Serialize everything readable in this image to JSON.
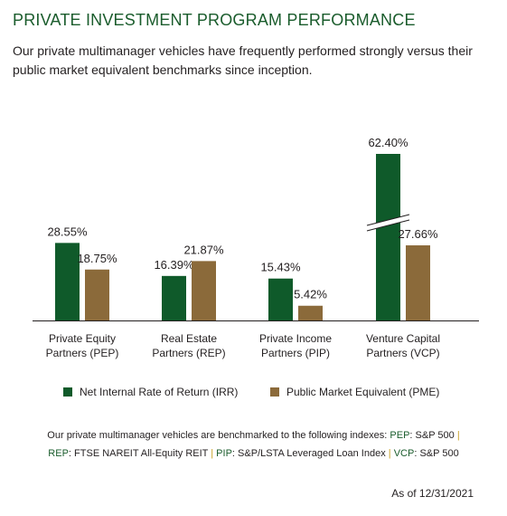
{
  "header": {
    "title": "PRIVATE INVESTMENT PROGRAM PERFORMANCE",
    "subtitle": "Our private multimanager vehicles have frequently performed strongly versus their public market equivalent benchmarks since inception."
  },
  "chart_data": {
    "type": "bar",
    "categories": [
      [
        "Private Equity",
        "Partners (PEP)"
      ],
      [
        "Real Estate",
        "Partners (REP)"
      ],
      [
        "Private Income",
        "Partners (PIP)"
      ],
      [
        "Venture Capital",
        "Partners (VCP)"
      ]
    ],
    "series": [
      {
        "name": "Net Internal Rate of Return (IRR)",
        "color": "#0f5a2a",
        "values": [
          28.55,
          16.39,
          15.43,
          62.4
        ],
        "labels": [
          "28.55%",
          "16.39%",
          "15.43%",
          "62.40%"
        ]
      },
      {
        "name": "Public Market Equivalent (PME)",
        "color": "#8b6a3a",
        "values": [
          18.75,
          21.87,
          5.42,
          27.66
        ],
        "labels": [
          "18.75%",
          "21.87%",
          "5.42%",
          "27.66%"
        ]
      }
    ],
    "axis_break": {
      "series": 0,
      "category": 3
    },
    "legend_position": "bottom",
    "grid": false
  },
  "footnote": {
    "intro": "Our private multimanager vehicles are benchmarked to the following indexes: ",
    "items": [
      {
        "key": "PEP",
        "value": "S&P 500"
      },
      {
        "key": "REP",
        "value": "FTSE NAREIT All-Equity REIT"
      },
      {
        "key": "PIP",
        "value": "S&P/LSTA Leveraged Loan Index"
      },
      {
        "key": "VCP",
        "value": "S&P 500"
      }
    ],
    "separator": "|"
  },
  "as_of": "As of 12/31/2021",
  "colors": {
    "title": "#1a5c2c",
    "separator": "#c9a227"
  }
}
